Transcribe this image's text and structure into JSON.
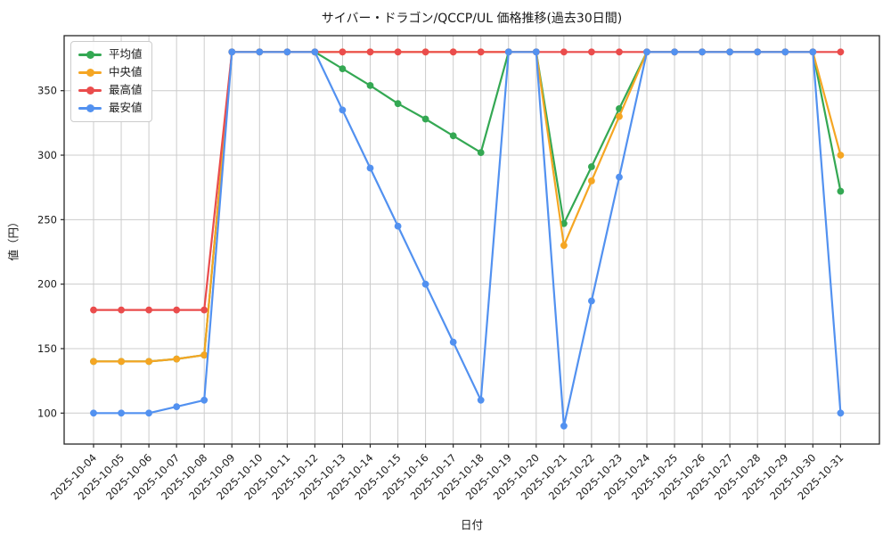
{
  "chart_data": {
    "type": "line",
    "title": "サイバー・ドラゴン/QCCP/UL 価格推移(過去30日間)",
    "xlabel": "日付",
    "ylabel": "値（円）",
    "x": [
      "2025-10-04",
      "2025-10-05",
      "2025-10-06",
      "2025-10-07",
      "2025-10-08",
      "2025-10-09",
      "2025-10-10",
      "2025-10-11",
      "2025-10-12",
      "2025-10-13",
      "2025-10-14",
      "2025-10-15",
      "2025-10-16",
      "2025-10-17",
      "2025-10-18",
      "2025-10-19",
      "2025-10-20",
      "2025-10-21",
      "2025-10-22",
      "2025-10-23",
      "2025-10-24",
      "2025-10-25",
      "2025-10-26",
      "2025-10-27",
      "2025-10-28",
      "2025-10-29",
      "2025-10-30",
      "2025-10-31"
    ],
    "series": [
      {
        "name": "平均値",
        "color": "#34a853",
        "values": [
          140,
          140,
          140,
          142,
          145,
          380,
          380,
          380,
          380,
          367,
          354,
          340,
          328,
          315,
          302,
          380,
          380,
          247,
          291,
          336,
          380,
          380,
          380,
          380,
          380,
          380,
          380,
          272
        ]
      },
      {
        "name": "中央値",
        "color": "#f5a623",
        "values": [
          140,
          140,
          140,
          142,
          145,
          380,
          380,
          380,
          380,
          380,
          380,
          380,
          380,
          380,
          380,
          380,
          380,
          230,
          280,
          330,
          380,
          380,
          380,
          380,
          380,
          380,
          380,
          300
        ]
      },
      {
        "name": "最高値",
        "color": "#ea4c4c",
        "values": [
          180,
          180,
          180,
          180,
          180,
          380,
          380,
          380,
          380,
          380,
          380,
          380,
          380,
          380,
          380,
          380,
          380,
          380,
          380,
          380,
          380,
          380,
          380,
          380,
          380,
          380,
          380,
          380
        ]
      },
      {
        "name": "最安値",
        "color": "#5291f0",
        "values": [
          100,
          100,
          100,
          105,
          110,
          380,
          380,
          380,
          380,
          335,
          290,
          245,
          200,
          155,
          110,
          380,
          380,
          90,
          187,
          283,
          380,
          380,
          380,
          380,
          380,
          380,
          380,
          100
        ]
      }
    ],
    "yticks": [
      100,
      150,
      200,
      250,
      300,
      350
    ],
    "ylim": [
      76,
      393
    ],
    "grid": true,
    "legend_position": "upper left",
    "grid_color": "#cccccc",
    "spine_color": "#262626",
    "tick_text_color": "#1a1a1a"
  }
}
